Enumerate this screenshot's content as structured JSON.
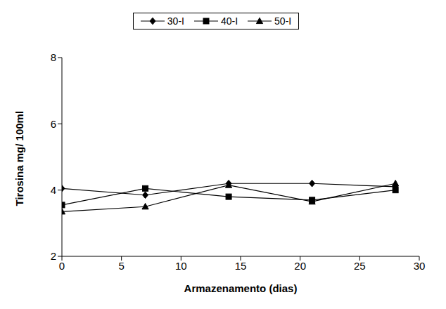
{
  "chart_data": {
    "type": "line",
    "x_label": "Armazenamento (dias)",
    "y_label": "Tirosina mg/ 100ml",
    "x": [
      0,
      7,
      14,
      21,
      28
    ],
    "xlim": [
      0,
      30
    ],
    "xticks": [
      0,
      5,
      10,
      15,
      20,
      25,
      30
    ],
    "ylim": [
      2,
      8
    ],
    "yticks": [
      2,
      4,
      6,
      8
    ],
    "grid": false,
    "legend": "top",
    "series": [
      {
        "name": "30-I",
        "color": "#000000",
        "marker": "diamond",
        "values": [
          4.05,
          3.85,
          4.2,
          4.2,
          4.1
        ]
      },
      {
        "name": "40-I",
        "color": "#000000",
        "marker": "square",
        "values": [
          3.55,
          4.05,
          3.8,
          3.7,
          4.0
        ]
      },
      {
        "name": "50-I",
        "color": "#000000",
        "marker": "triangle",
        "values": [
          3.35,
          3.5,
          4.15,
          3.65,
          4.2
        ]
      }
    ]
  }
}
